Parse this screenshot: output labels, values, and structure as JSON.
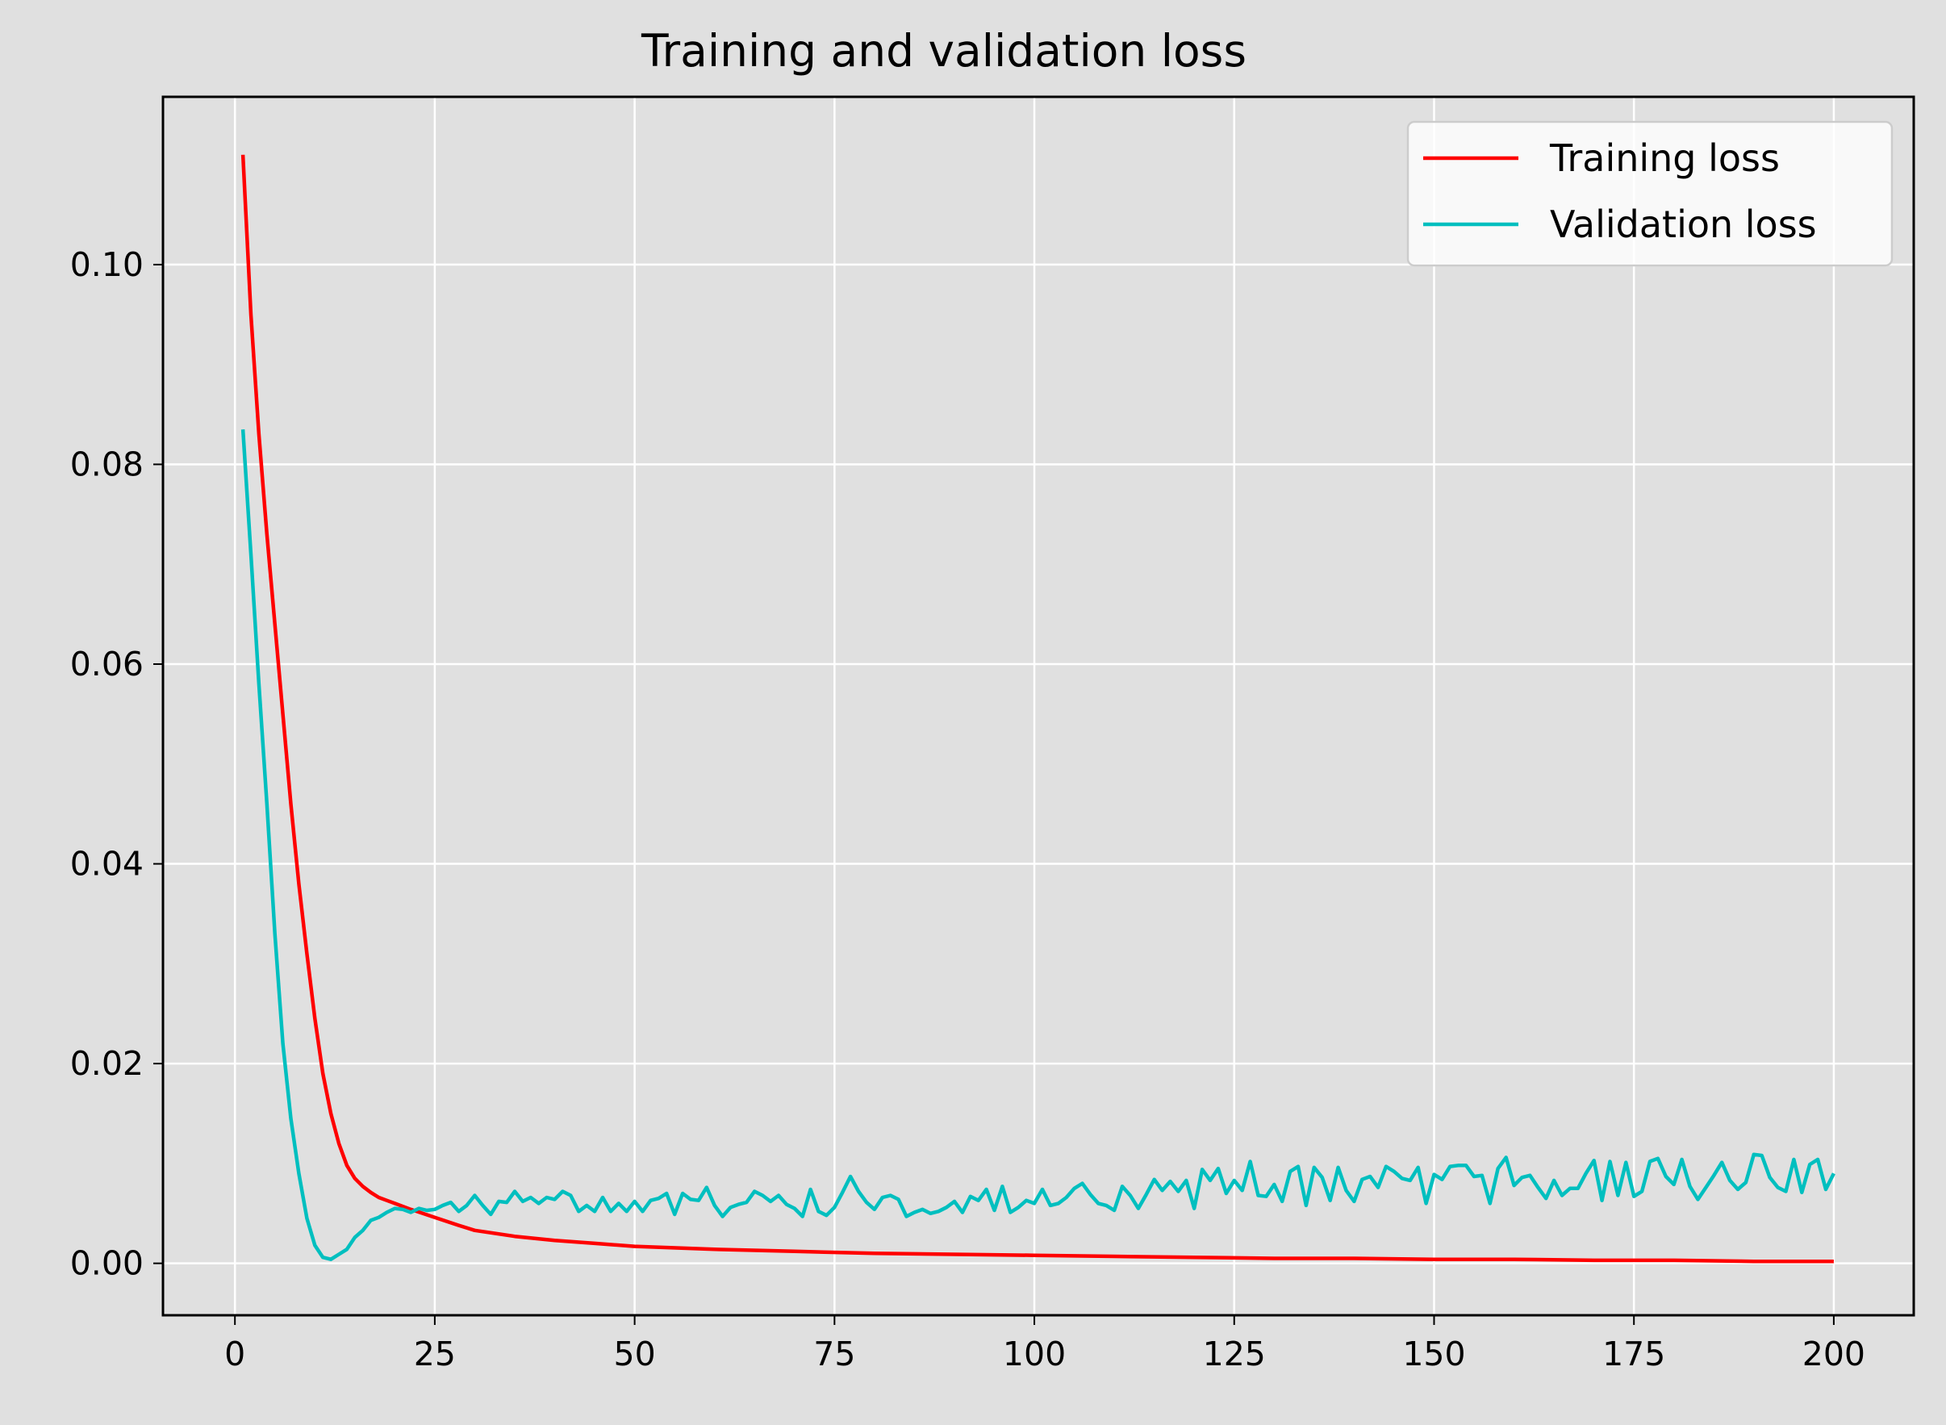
{
  "chart_data": {
    "type": "line",
    "title": "Training and validation loss",
    "xlabel": "",
    "ylabel": "",
    "xlim": [
      -9,
      210
    ],
    "ylim": [
      -0.0052,
      0.1168
    ],
    "xticks": [
      0,
      25,
      50,
      75,
      100,
      125,
      150,
      175,
      200
    ],
    "xtick_labels": [
      "0",
      "25",
      "50",
      "75",
      "100",
      "125",
      "150",
      "175",
      "200"
    ],
    "yticks": [
      0.0,
      0.02,
      0.04,
      0.06,
      0.08,
      0.1
    ],
    "ytick_labels": [
      "0.00",
      "0.02",
      "0.04",
      "0.06",
      "0.08",
      "0.10"
    ],
    "grid": true,
    "legend_position": "top-right",
    "series": [
      {
        "name": "Training loss",
        "color": "#ff0000",
        "x": [
          1,
          2,
          3,
          4,
          5,
          6,
          7,
          8,
          9,
          10,
          11,
          12,
          13,
          14,
          15,
          16,
          17,
          18,
          19,
          20,
          22,
          25,
          28,
          30,
          35,
          40,
          45,
          50,
          60,
          70,
          80,
          90,
          100,
          110,
          120,
          130,
          140,
          150,
          160,
          170,
          180,
          190,
          200
        ],
        "values": [
          0.111,
          0.095,
          0.083,
          0.073,
          0.064,
          0.055,
          0.046,
          0.038,
          0.031,
          0.0245,
          0.019,
          0.015,
          0.012,
          0.0098,
          0.0085,
          0.0077,
          0.0071,
          0.0066,
          0.0063,
          0.006,
          0.0054,
          0.0046,
          0.0038,
          0.0033,
          0.0027,
          0.0023,
          0.002,
          0.0017,
          0.0014,
          0.0012,
          0.001,
          0.0009,
          0.0008,
          0.0007,
          0.0006,
          0.0005,
          0.0005,
          0.0004,
          0.0004,
          0.0003,
          0.0003,
          0.0002,
          0.0002
        ]
      },
      {
        "name": "Validation loss",
        "color": "#00bfbf",
        "x": [
          1,
          2,
          3,
          4,
          5,
          6,
          7,
          8,
          9,
          10,
          11,
          12,
          13,
          14,
          15,
          16,
          17,
          18,
          19,
          20,
          21,
          22,
          23,
          24,
          25,
          26,
          27,
          28,
          29,
          30,
          31,
          32,
          33,
          34,
          35,
          36,
          37,
          38,
          39,
          40,
          41,
          42,
          43,
          44,
          45,
          46,
          47,
          48,
          49,
          50,
          51,
          52,
          53,
          54,
          55,
          56,
          57,
          58,
          59,
          60,
          61,
          62,
          63,
          64,
          65,
          66,
          67,
          68,
          69,
          70,
          71,
          72,
          73,
          74,
          75,
          76,
          77,
          78,
          79,
          80,
          81,
          82,
          83,
          84,
          85,
          86,
          87,
          88,
          89,
          90,
          91,
          92,
          93,
          94,
          95,
          96,
          97,
          98,
          99,
          100,
          101,
          102,
          103,
          104,
          105,
          106,
          107,
          108,
          109,
          110,
          111,
          112,
          113,
          114,
          115,
          116,
          117,
          118,
          119,
          120,
          121,
          122,
          123,
          124,
          125,
          126,
          127,
          128,
          129,
          130,
          131,
          132,
          133,
          134,
          135,
          136,
          137,
          138,
          139,
          140,
          141,
          142,
          143,
          144,
          145,
          146,
          147,
          148,
          149,
          150,
          151,
          152,
          153,
          154,
          155,
          156,
          157,
          158,
          159,
          160,
          161,
          162,
          163,
          164,
          165,
          166,
          167,
          168,
          169,
          170,
          171,
          172,
          173,
          174,
          175,
          176,
          177,
          178,
          179,
          180,
          181,
          182,
          183,
          184,
          185,
          186,
          187,
          188,
          189,
          190,
          191,
          192,
          193,
          194,
          195,
          196,
          197,
          198,
          199,
          200
        ],
        "values": [
          0.0835,
          0.071,
          0.058,
          0.046,
          0.033,
          0.022,
          0.0145,
          0.009,
          0.0045,
          0.0018,
          0.0006,
          0.0004,
          0.0009,
          0.0014,
          0.0026,
          0.0033,
          0.0043,
          0.0046,
          0.0051,
          0.0055,
          0.0054,
          0.0051,
          0.0055,
          0.0053,
          0.0054,
          0.0058,
          0.0061,
          0.0052,
          0.0058,
          0.0068,
          0.0058,
          0.0049,
          0.0062,
          0.0061,
          0.0072,
          0.0062,
          0.0066,
          0.006,
          0.0066,
          0.0064,
          0.0072,
          0.0068,
          0.0052,
          0.0058,
          0.0052,
          0.0066,
          0.0052,
          0.006,
          0.0052,
          0.0062,
          0.0052,
          0.0063,
          0.0065,
          0.007,
          0.0049,
          0.007,
          0.0064,
          0.0063,
          0.0076,
          0.0058,
          0.0047,
          0.0056,
          0.0059,
          0.0061,
          0.0072,
          0.0068,
          0.0062,
          0.0068,
          0.0059,
          0.0055,
          0.0047,
          0.0074,
          0.0052,
          0.0048,
          0.0056,
          0.0071,
          0.0087,
          0.0072,
          0.0061,
          0.0054,
          0.0066,
          0.0068,
          0.0064,
          0.0047,
          0.0051,
          0.0054,
          0.005,
          0.0052,
          0.0056,
          0.0062,
          0.0051,
          0.0067,
          0.0063,
          0.0074,
          0.0053,
          0.0077,
          0.0051,
          0.0056,
          0.0063,
          0.006,
          0.0074,
          0.0058,
          0.006,
          0.0066,
          0.0075,
          0.008,
          0.0069,
          0.006,
          0.0058,
          0.0053,
          0.0077,
          0.0068,
          0.0055,
          0.0069,
          0.0084,
          0.0073,
          0.0082,
          0.0072,
          0.0083,
          0.0055,
          0.0094,
          0.0083,
          0.0095,
          0.007,
          0.0083,
          0.0073,
          0.0102,
          0.0068,
          0.0067,
          0.0079,
          0.0062,
          0.0092,
          0.0097,
          0.0058,
          0.0096,
          0.0086,
          0.0063,
          0.0096,
          0.0073,
          0.0062,
          0.0084,
          0.0087,
          0.0076,
          0.0097,
          0.0092,
          0.0085,
          0.0083,
          0.0096,
          0.006,
          0.0089,
          0.0084,
          0.0097,
          0.0098,
          0.0098,
          0.0087,
          0.0088,
          0.006,
          0.0095,
          0.0106,
          0.0078,
          0.0086,
          0.0088,
          0.0076,
          0.0065,
          0.0083,
          0.0068,
          0.0075,
          0.0075,
          0.009,
          0.0103,
          0.0063,
          0.0102,
          0.0068,
          0.0101,
          0.0067,
          0.0072,
          0.0102,
          0.0105,
          0.0087,
          0.0079,
          0.0104,
          0.0077,
          0.0064,
          0.0076,
          0.0088,
          0.0101,
          0.0083,
          0.0074,
          0.0081,
          0.0109,
          0.0108,
          0.0086,
          0.0076,
          0.0072,
          0.0104,
          0.0071,
          0.0099,
          0.0104,
          0.0074,
          0.009
        ]
      }
    ]
  }
}
